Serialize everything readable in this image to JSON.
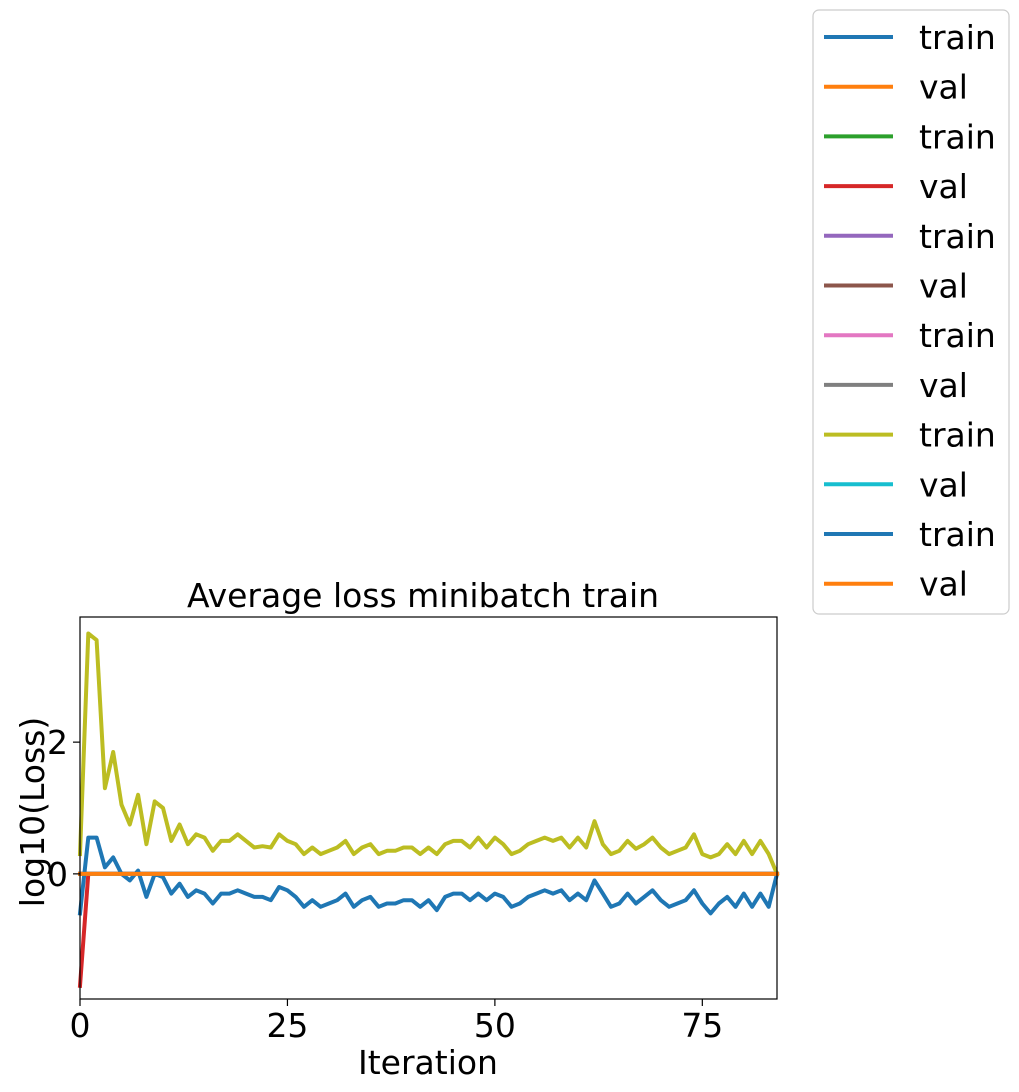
{
  "chart_data": {
    "type": "line",
    "title": "Average loss minibatch train",
    "xlabel": "Iteration",
    "ylabel": "log10(Loss)",
    "xlim": [
      0,
      84
    ],
    "ylim": [
      -1.9,
      3.9
    ],
    "xticks": [
      0,
      25,
      50,
      75
    ],
    "xtick_labels": [
      "0",
      "25",
      "50",
      "75"
    ],
    "yticks": [
      0,
      2
    ],
    "ytick_labels": [
      "0",
      "2"
    ],
    "grid": false,
    "legend_placement": "outside upper right",
    "series": [
      {
        "name": "train",
        "color": "#1f77b4",
        "x": [
          0,
          84
        ],
        "values": [
          0.0,
          0.0
        ]
      },
      {
        "name": "val",
        "color": "#ff7f0e",
        "x": [
          0,
          84
        ],
        "values": [
          0.0,
          0.0
        ]
      },
      {
        "name": "train",
        "color": "#2ca02c",
        "x": [
          0,
          84
        ],
        "values": [
          0.0,
          0.0
        ]
      },
      {
        "name": "val",
        "color": "#d62728",
        "x": [
          0,
          1,
          84
        ],
        "values": [
          -1.7,
          0.0,
          0.0
        ]
      },
      {
        "name": "train",
        "color": "#9467bd",
        "x": [
          0,
          84
        ],
        "values": [
          0.0,
          0.0
        ]
      },
      {
        "name": "val",
        "color": "#8c564b",
        "x": [
          0,
          84
        ],
        "values": [
          0.0,
          0.0
        ]
      },
      {
        "name": "train",
        "color": "#e377c2",
        "x": [
          0,
          84
        ],
        "values": [
          0.0,
          0.0
        ]
      },
      {
        "name": "val",
        "color": "#7f7f7f",
        "x": [
          0,
          84
        ],
        "values": [
          0.0,
          0.0
        ]
      },
      {
        "name": "train",
        "color": "#bcbd22",
        "x": [
          0,
          1,
          2,
          3,
          4,
          5,
          6,
          7,
          8,
          9,
          10,
          11,
          12,
          13,
          14,
          15,
          16,
          17,
          18,
          19,
          20,
          21,
          22,
          23,
          24,
          25,
          26,
          27,
          28,
          29,
          30,
          31,
          32,
          33,
          34,
          35,
          36,
          37,
          38,
          39,
          40,
          41,
          42,
          43,
          44,
          45,
          46,
          47,
          48,
          49,
          50,
          51,
          52,
          53,
          54,
          55,
          56,
          57,
          58,
          59,
          60,
          61,
          62,
          63,
          64,
          65,
          66,
          67,
          68,
          69,
          70,
          71,
          72,
          73,
          74,
          75,
          76,
          77,
          78,
          79,
          80,
          81,
          82,
          83,
          84
        ],
        "values": [
          0.3,
          3.65,
          3.55,
          1.3,
          1.85,
          1.05,
          0.75,
          1.2,
          0.45,
          1.1,
          1.0,
          0.5,
          0.75,
          0.45,
          0.6,
          0.55,
          0.35,
          0.5,
          0.5,
          0.6,
          0.5,
          0.4,
          0.42,
          0.4,
          0.6,
          0.5,
          0.45,
          0.3,
          0.4,
          0.3,
          0.35,
          0.4,
          0.5,
          0.3,
          0.4,
          0.45,
          0.3,
          0.35,
          0.35,
          0.4,
          0.4,
          0.3,
          0.4,
          0.3,
          0.45,
          0.5,
          0.5,
          0.4,
          0.55,
          0.4,
          0.55,
          0.45,
          0.3,
          0.35,
          0.45,
          0.5,
          0.55,
          0.5,
          0.55,
          0.4,
          0.55,
          0.4,
          0.8,
          0.45,
          0.3,
          0.35,
          0.5,
          0.38,
          0.45,
          0.55,
          0.4,
          0.3,
          0.35,
          0.4,
          0.6,
          0.3,
          0.25,
          0.3,
          0.45,
          0.3,
          0.5,
          0.3,
          0.5,
          0.3,
          0.0
        ]
      },
      {
        "name": "val",
        "color": "#17becf",
        "x": [
          0,
          84
        ],
        "values": [
          0.0,
          0.0
        ]
      },
      {
        "name": "train",
        "color": "#1f77b4",
        "x": [
          0,
          1,
          2,
          3,
          4,
          5,
          6,
          7,
          8,
          9,
          10,
          11,
          12,
          13,
          14,
          15,
          16,
          17,
          18,
          19,
          20,
          21,
          22,
          23,
          24,
          25,
          26,
          27,
          28,
          29,
          30,
          31,
          32,
          33,
          34,
          35,
          36,
          37,
          38,
          39,
          40,
          41,
          42,
          43,
          44,
          45,
          46,
          47,
          48,
          49,
          50,
          51,
          52,
          53,
          54,
          55,
          56,
          57,
          58,
          59,
          60,
          61,
          62,
          63,
          64,
          65,
          66,
          67,
          68,
          69,
          70,
          71,
          72,
          73,
          74,
          75,
          76,
          77,
          78,
          79,
          80,
          81,
          82,
          83,
          84
        ],
        "values": [
          -0.6,
          0.55,
          0.55,
          0.1,
          0.25,
          0.0,
          -0.1,
          0.05,
          -0.35,
          0.0,
          -0.05,
          -0.3,
          -0.15,
          -0.35,
          -0.25,
          -0.3,
          -0.45,
          -0.3,
          -0.3,
          -0.25,
          -0.3,
          -0.35,
          -0.35,
          -0.4,
          -0.2,
          -0.25,
          -0.35,
          -0.5,
          -0.4,
          -0.5,
          -0.45,
          -0.4,
          -0.3,
          -0.5,
          -0.4,
          -0.35,
          -0.5,
          -0.45,
          -0.45,
          -0.4,
          -0.4,
          -0.5,
          -0.4,
          -0.55,
          -0.35,
          -0.3,
          -0.3,
          -0.4,
          -0.3,
          -0.4,
          -0.3,
          -0.35,
          -0.5,
          -0.45,
          -0.35,
          -0.3,
          -0.25,
          -0.3,
          -0.25,
          -0.4,
          -0.3,
          -0.4,
          -0.1,
          -0.3,
          -0.5,
          -0.45,
          -0.3,
          -0.45,
          -0.35,
          -0.25,
          -0.4,
          -0.5,
          -0.45,
          -0.4,
          -0.25,
          -0.45,
          -0.6,
          -0.45,
          -0.35,
          -0.5,
          -0.3,
          -0.5,
          -0.3,
          -0.5,
          0.0
        ]
      },
      {
        "name": "val",
        "color": "#ff7f0e",
        "x": [
          0,
          84
        ],
        "values": [
          0.0,
          0.0
        ]
      }
    ]
  }
}
